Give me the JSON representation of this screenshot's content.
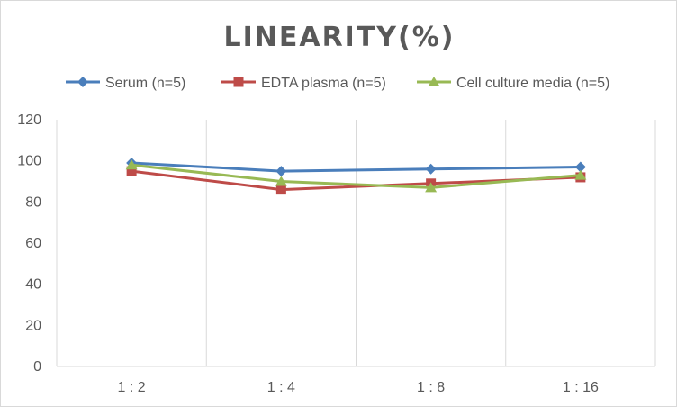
{
  "chart_data": {
    "type": "line",
    "title": "LINEARITY(%)",
    "categories": [
      "1:2",
      "1:4",
      "1:8",
      "1:16"
    ],
    "ylim": [
      0,
      120
    ],
    "yticks": [
      0,
      20,
      40,
      60,
      80,
      100,
      120
    ],
    "grid": "vertical",
    "legend_position": "top",
    "series": [
      {
        "name": "Serum (n=5)",
        "color": "#4a7ebb",
        "marker": "diamond",
        "values": [
          99,
          95,
          96,
          97
        ]
      },
      {
        "name": "EDTA plasma (n=5)",
        "color": "#be4b48",
        "marker": "square",
        "values": [
          95,
          86,
          89,
          92
        ]
      },
      {
        "name": "Cell culture media (n=5)",
        "color": "#98b954",
        "marker": "triangle",
        "values": [
          98,
          90,
          87,
          93
        ]
      }
    ]
  }
}
